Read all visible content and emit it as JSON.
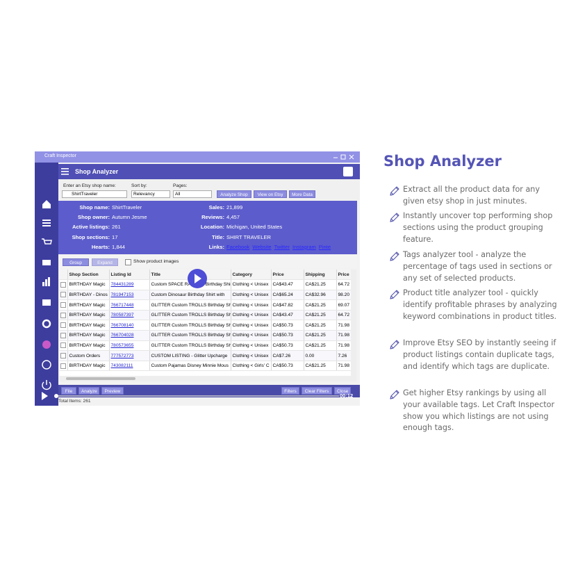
{
  "video": {
    "window_title": "Craft Inspector",
    "header": "Shop Analyzer",
    "form": {
      "shop_label": "Enter an Etsy shop name:",
      "shop_value": "ShirtTraveler",
      "sort_label": "Sort by:",
      "sort_value": "Relevancy",
      "pages_label": "Pages:",
      "pages_value": "All",
      "buttons": [
        "Analyze Shop",
        "View on Etsy",
        "More Data"
      ]
    },
    "shop_info": {
      "left": [
        {
          "label": "Shop name:",
          "value": "ShirtTraveler"
        },
        {
          "label": "Shop owner:",
          "value": "Autumn Jesme"
        },
        {
          "label": "Active listings:",
          "value": "261"
        },
        {
          "label": "Shop sections:",
          "value": "17"
        },
        {
          "label": "Hearts:",
          "value": "1,844"
        }
      ],
      "right": [
        {
          "label": "Sales:",
          "value": "21,899"
        },
        {
          "label": "Reviews:",
          "value": "4,457"
        },
        {
          "label": "Location:",
          "value": "Michigan, United States"
        },
        {
          "label": "Title:",
          "value": "SHIRT TRAVELER"
        }
      ],
      "links_label": "Links:",
      "links": [
        "Facebook",
        "Website",
        "Twitter",
        "Instagram",
        "Pinte"
      ]
    },
    "toolbar": {
      "buttons": [
        "Group",
        "Expand"
      ],
      "checkbox": "Show product images"
    },
    "table": {
      "columns": [
        "Shop Section",
        "Listing Id",
        "Title",
        "Category",
        "Price",
        "Shipping",
        "Price"
      ],
      "rows": [
        [
          "BIRTHDAY Magic",
          "784431289",
          "Custom SPACE RANGER Birthday Shir",
          "Clothing < Unisex",
          "CA$43.47",
          "CA$21.25",
          "64.72"
        ],
        [
          "BIRTHDAY - Dinos",
          "781947153",
          "Custom Dinosaur Birthday Shirt with",
          "Clothing < Unisex",
          "CA$65.24",
          "CA$32.96",
          "98.20"
        ],
        [
          "BIRTHDAY Magic",
          "766717448",
          "GLITTER Custom TROLLS Birthday Shi",
          "Clothing < Unisex",
          "CA$47.82",
          "CA$21.25",
          "69.07"
        ],
        [
          "BIRTHDAY Magic",
          "780587397",
          "GLITTER Custom TROLLS Birthday Shi",
          "Clothing < Unisex",
          "CA$43.47",
          "CA$21.25",
          "64.72"
        ],
        [
          "BIRTHDAY Magic",
          "766708140",
          "GLITTER Custom TROLLS Birthday Shi",
          "Clothing < Unisex",
          "CA$50.73",
          "CA$21.25",
          "71.98"
        ],
        [
          "BIRTHDAY Magic",
          "766704028",
          "GLITTER Custom TROLLS Birthday Shi",
          "Clothing < Unisex",
          "CA$50.73",
          "CA$21.25",
          "71.98"
        ],
        [
          "BIRTHDAY Magic",
          "780573655",
          "GLITTER Custom TROLLS Birthday Shi",
          "Clothing < Unisex",
          "CA$50.73",
          "CA$21.25",
          "71.98"
        ],
        [
          "Custom Orders",
          "777572773",
          "CUSTOM LISTING - Glitter Upcharge",
          "Clothing < Unisex",
          "CA$7.26",
          "0.00",
          "7.26"
        ],
        [
          "BIRTHDAY Magic",
          "743082111",
          "Custom Pajamas Disney Minnie Mous",
          "Clothing < Girls' C",
          "CA$50.73",
          "CA$21.25",
          "71.98"
        ]
      ]
    },
    "footer": {
      "buttons": [
        "File",
        "Analyze",
        "Preview"
      ],
      "right_buttons": [
        "Filters",
        "Clear Filters",
        "Close"
      ],
      "status": "Total Items: 261",
      "time": "00:12"
    }
  },
  "content": {
    "title": "Shop Analyzer",
    "items": [
      "Extract all the product data for any given etsy shop in just minutes.",
      "Instantly uncover top performing shop sections using the product grouping feature.",
      "Tags analyzer tool - analyze the percentage of tags used in sections or any set of selected products.",
      "Product title analyzer tool - quickly identify profitable phrases by analyzing keyword combinations in product titles.",
      "Improve Etsy SEO by instantly seeing if product listings contain duplicate tags, and identify which tags are duplicate.",
      "Get higher Etsy rankings by using all your available tags. Let Craft Inspector show you which listings are not using enough tags."
    ]
  }
}
